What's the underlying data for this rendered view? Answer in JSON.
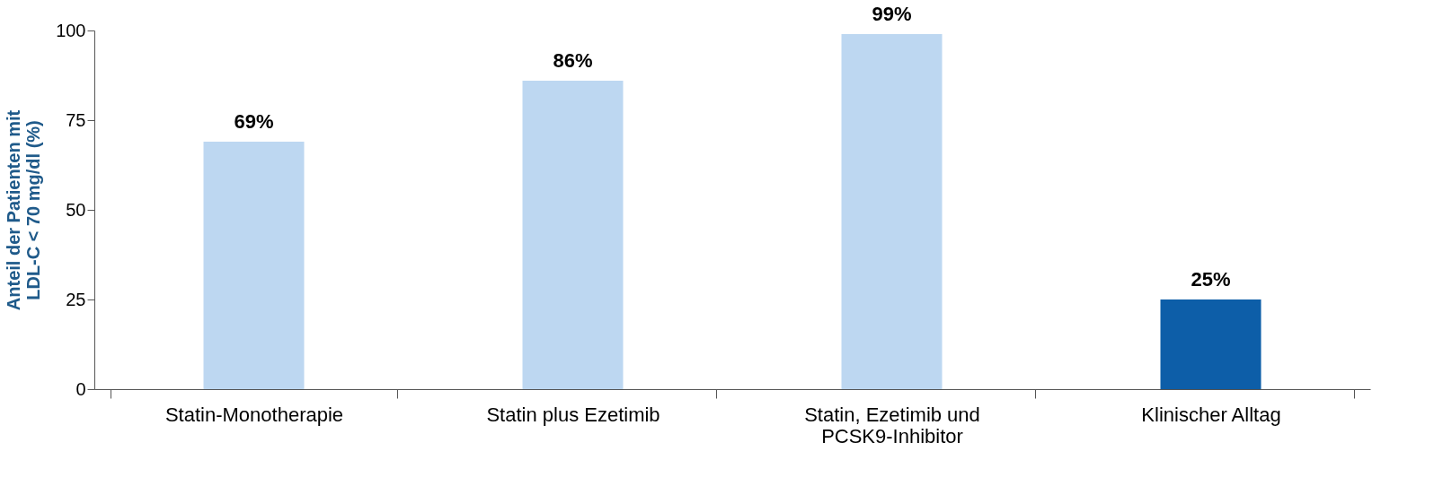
{
  "chart_data": {
    "type": "bar",
    "ylabel": "Anteil der Patienten mit LDL-C < 70 mg/dl (%)",
    "categories": [
      "Statin-Monotherapie",
      "Statin plus Ezetimib",
      "Statin, Ezetimib und PCSK9-Inhibitor",
      "Klinischer Alltag"
    ],
    "values": [
      69,
      86,
      99,
      25
    ],
    "value_labels": [
      "69%",
      "86%",
      "99%",
      "25%"
    ],
    "colors": [
      "#bdd7f1",
      "#bdd7f1",
      "#bdd7f1",
      "#0d5ea8"
    ],
    "ylim": [
      0,
      100
    ],
    "yticks": [
      0,
      25,
      50,
      75,
      100
    ],
    "grid": false,
    "legend": false
  }
}
